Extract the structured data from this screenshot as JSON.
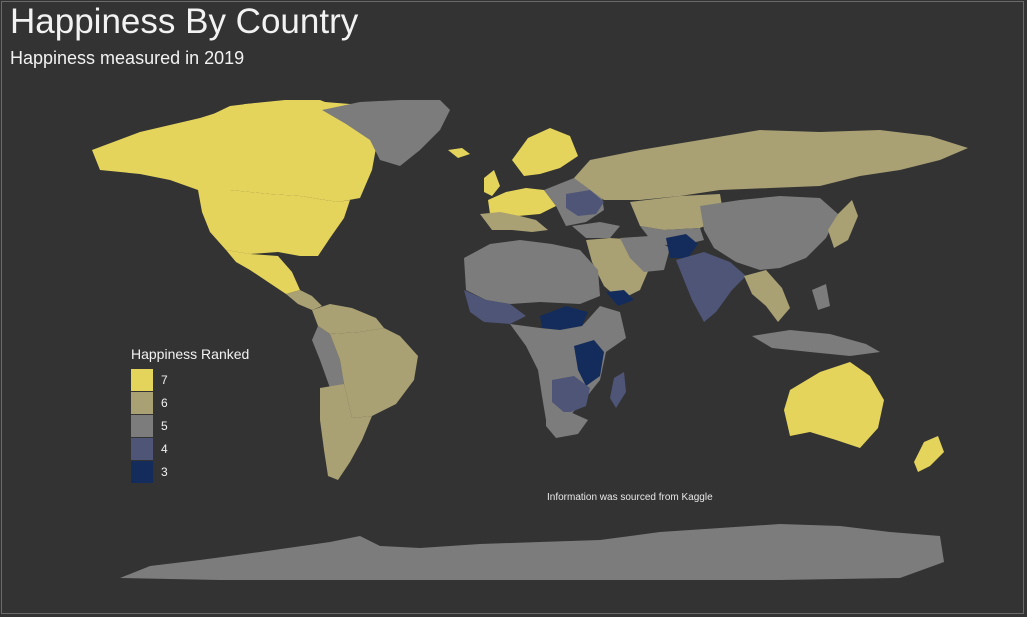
{
  "title": "Happiness By Country",
  "subtitle": "Happiness measured in 2019",
  "caption": "Information was sourced from Kaggle",
  "legend": {
    "title": "Happiness Ranked",
    "items": [
      {
        "label": "7",
        "color": "#e5d45c"
      },
      {
        "label": "6",
        "color": "#a9a074"
      },
      {
        "label": "5",
        "color": "#7c7c7c"
      },
      {
        "label": "4",
        "color": "#4e5577"
      },
      {
        "label": "3",
        "color": "#142c5c"
      }
    ]
  },
  "colors": {
    "background": "#333333",
    "no_data": "#333333",
    "rank_7": "#e5d45c",
    "rank_6": "#a9a074",
    "rank_5": "#7c7c7c",
    "rank_4": "#4e5577",
    "rank_3": "#142c5c"
  }
}
